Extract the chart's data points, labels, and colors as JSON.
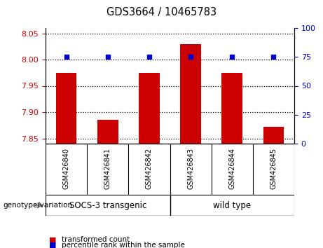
{
  "title": "GDS3664 / 10465783",
  "samples": [
    "GSM426840",
    "GSM426841",
    "GSM426842",
    "GSM426843",
    "GSM426844",
    "GSM426845"
  ],
  "bar_values": [
    7.975,
    7.885,
    7.975,
    8.03,
    7.975,
    7.872
  ],
  "percentile_values": [
    75,
    75,
    75,
    75,
    75,
    75
  ],
  "ylim_left": [
    7.84,
    8.06
  ],
  "ylim_right": [
    0,
    100
  ],
  "yticks_left": [
    7.85,
    7.9,
    7.95,
    8.0,
    8.05
  ],
  "yticks_right": [
    0,
    25,
    50,
    75,
    100
  ],
  "bar_color": "#cc0000",
  "percentile_color": "#0000cc",
  "bar_baseline": 7.84,
  "group1_label": "SOCS-3 transgenic",
  "group2_label": "wild type",
  "genotype_label": "genotype/variation",
  "legend_bar_label": "transformed count",
  "legend_dot_label": "percentile rank within the sample",
  "tick_color_left": "#cc0000",
  "tick_color_right": "#0000cc",
  "xlabel_area_color": "#c8c8c8",
  "group_area_color": "#90ee90"
}
